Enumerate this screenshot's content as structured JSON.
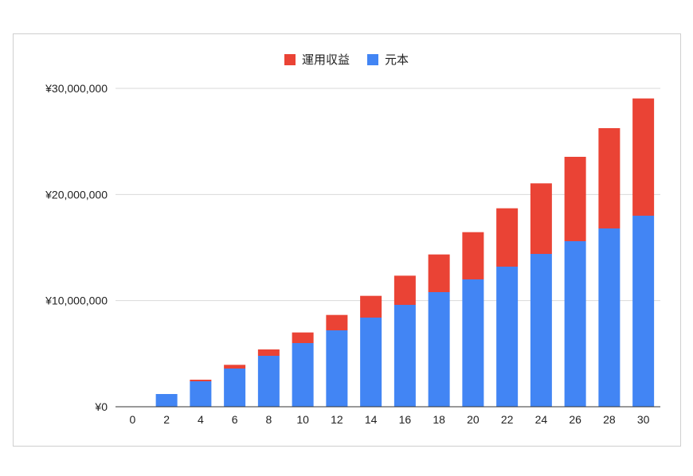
{
  "chart_data": {
    "type": "bar",
    "stacked": true,
    "title": "",
    "xlabel": "",
    "ylabel": "",
    "categories": [
      "0",
      "2",
      "4",
      "6",
      "8",
      "10",
      "12",
      "14",
      "16",
      "18",
      "20",
      "22",
      "24",
      "26",
      "28",
      "30"
    ],
    "series": [
      {
        "name": "元本",
        "color": "#4285f4",
        "values": [
          0,
          1200000,
          2400000,
          3600000,
          4800000,
          6000000,
          7200000,
          8400000,
          9600000,
          10800000,
          12000000,
          13200000,
          14400000,
          15600000,
          16800000,
          18000000
        ]
      },
      {
        "name": "運用収益",
        "color": "#ea4335",
        "values": [
          0,
          0,
          150000,
          350000,
          600000,
          1000000,
          1450000,
          2050000,
          2750000,
          3550000,
          4450000,
          5500000,
          6650000,
          7950000,
          9450000,
          11050000
        ]
      }
    ],
    "ylim": [
      0,
      30000000
    ],
    "yticks": [
      0,
      10000000,
      20000000,
      30000000
    ],
    "ytick_labels": [
      "¥0",
      "¥10,000,000",
      "¥20,000,000",
      "¥30,000,000"
    ],
    "grid": true,
    "legend_position": "top",
    "legend": [
      {
        "label": "運用収益",
        "color": "#ea4335"
      },
      {
        "label": "元本",
        "color": "#4285f4"
      }
    ]
  }
}
